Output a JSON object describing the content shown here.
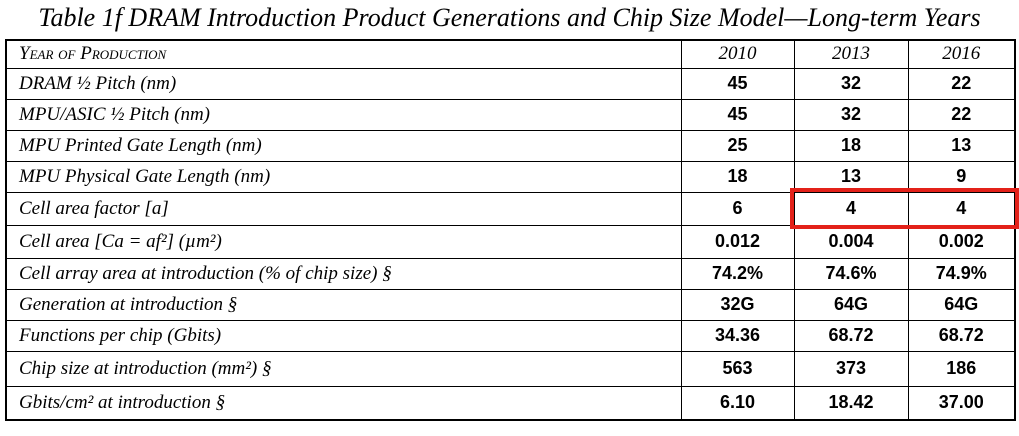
{
  "title": "Table 1f  DRAM Introduction Product Generations and Chip Size Model—Long-term Years",
  "table": {
    "header": {
      "label": "Year of Production",
      "years": [
        "2010",
        "2013",
        "2016"
      ]
    },
    "rows": [
      {
        "label": "DRAM ½ Pitch (nm)",
        "values": [
          "45",
          "32",
          "22"
        ]
      },
      {
        "label": "MPU/ASIC  ½ Pitch (nm)",
        "values": [
          "45",
          "32",
          "22"
        ]
      },
      {
        "label": "MPU Printed Gate Length (nm)",
        "values": [
          "25",
          "18",
          "13"
        ]
      },
      {
        "label": "MPU Physical Gate Length (nm)",
        "values": [
          "18",
          "13",
          "9"
        ]
      },
      {
        "label": "Cell area factor  [a]",
        "values": [
          "6",
          "4",
          "4"
        ],
        "highlighted": true
      },
      {
        "label": "Cell area [Ca = af²] (µm²)",
        "values": [
          "0.012",
          "0.004",
          "0.002"
        ]
      },
      {
        "label": "Cell array area at introduction (% of chip size)  §",
        "values": [
          "74.2%",
          "74.6%",
          "74.9%"
        ]
      },
      {
        "label": "Generation at introduction  §",
        "values": [
          "32G",
          "64G",
          "64G"
        ]
      },
      {
        "label": "Functions per chip (Gbits)",
        "values": [
          "34.36",
          "68.72",
          "68.72"
        ]
      },
      {
        "label": "Chip size at introduction (mm²) §",
        "values": [
          "563",
          "373",
          "186"
        ]
      },
      {
        "label": "Gbits/cm² at introduction  §",
        "values": [
          "6.10",
          "18.42",
          "37.00"
        ]
      }
    ]
  },
  "annotation": {
    "type": "highlight-box",
    "color": "#e32119",
    "around_row": "Cell area factor  [a]",
    "around_columns": [
      "2013",
      "2016"
    ]
  }
}
